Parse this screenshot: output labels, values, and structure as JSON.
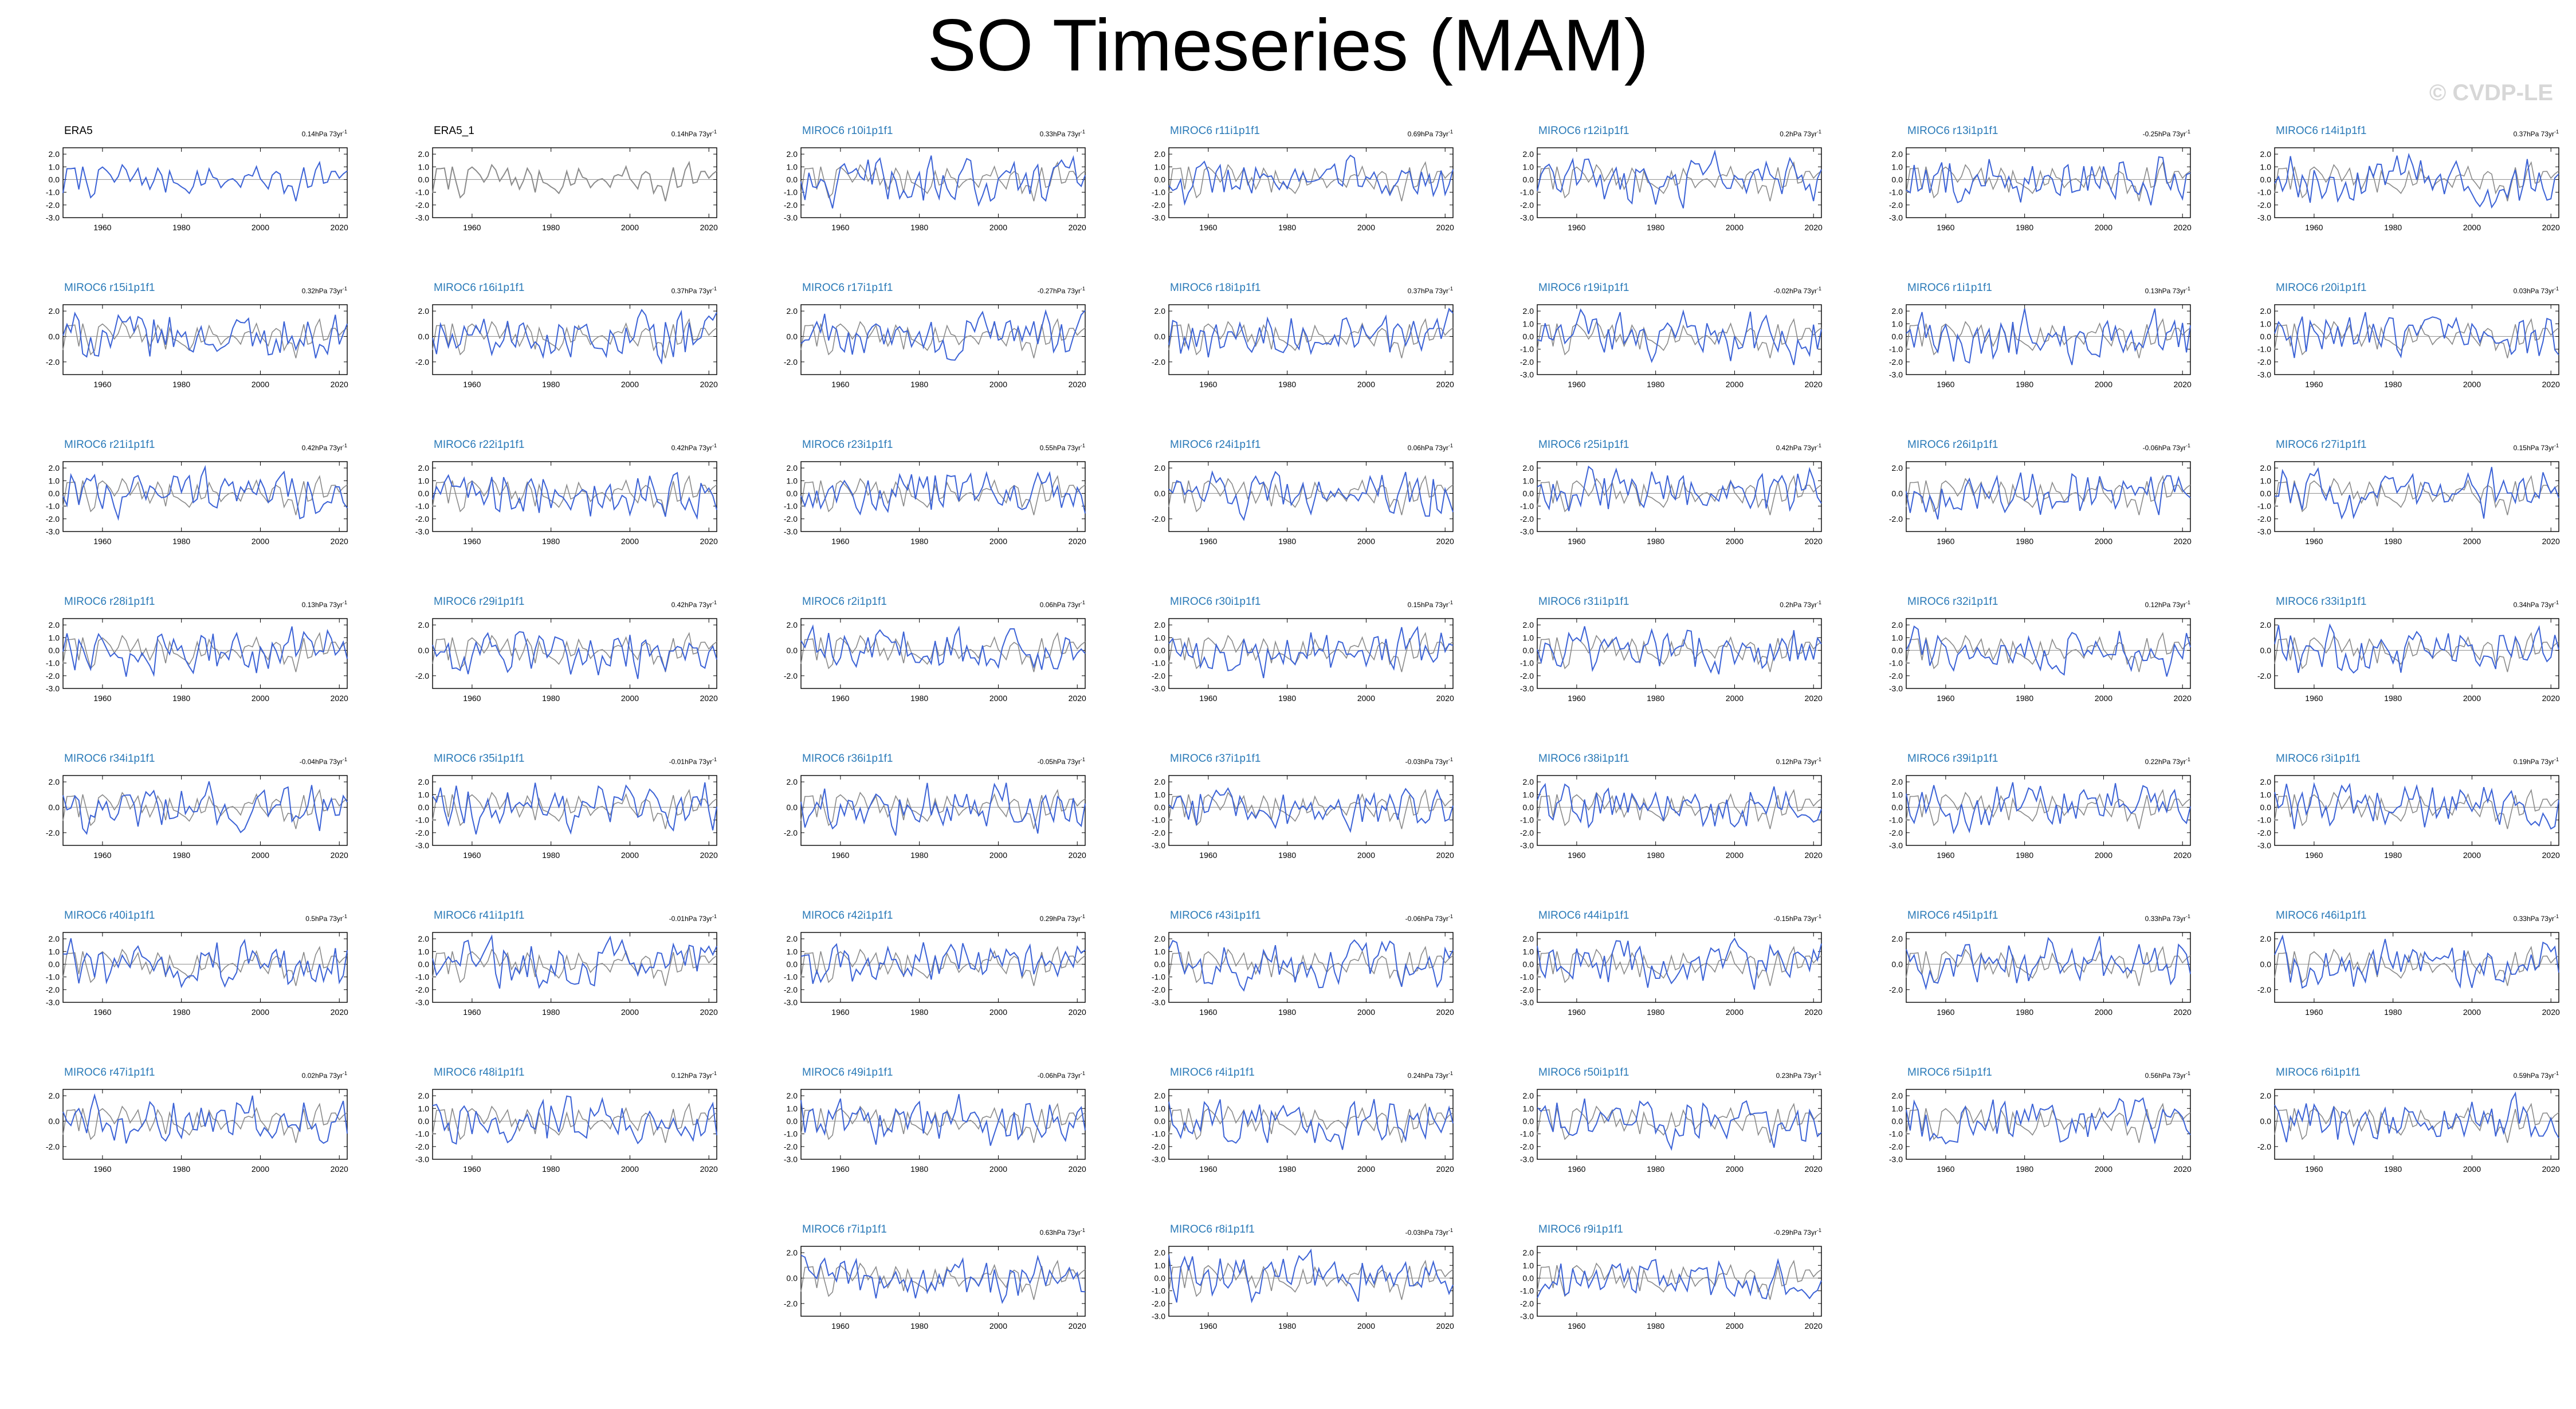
{
  "title": "SO Timeseries (MAM)",
  "credit": "© CVDP-LE",
  "colors": {
    "model": "#3b62d6",
    "obs": "#000000",
    "ref": "#8a8a8a",
    "model_title": "#2a7ab8",
    "obs_title": "#000000",
    "zero_line": "#9a9a9a"
  },
  "chart_data": {
    "type": "line",
    "x_range": [
      1950,
      2022
    ],
    "xticks": [
      1960,
      1980,
      2000,
      2020
    ],
    "xtick_labels": [
      "1960",
      "1980",
      "2000",
      "2020"
    ],
    "ylim": [
      -3.0,
      2.5
    ],
    "yticks_common": [
      "2.0",
      "0.0",
      "-2.0"
    ],
    "yticks_fine": [
      "2.0",
      "1.0",
      "0.0",
      "-1.0",
      "-2.0",
      "-3.0"
    ],
    "panels": [
      {
        "title": "ERA5",
        "trend": "0.14hPa 73yr",
        "obs": true,
        "fine": true
      },
      {
        "title": "ERA5_1",
        "trend": "0.14hPa 73yr",
        "obs": true,
        "fine": true
      },
      {
        "title": "MIROC6 r10i1p1f1",
        "trend": "0.33hPa 73yr",
        "fine": true
      },
      {
        "title": "MIROC6 r11i1p1f1",
        "trend": "0.69hPa 73yr",
        "fine": true
      },
      {
        "title": "MIROC6 r12i1p1f1",
        "trend": "0.2hPa 73yr",
        "fine": true
      },
      {
        "title": "MIROC6 r13i1p1f1",
        "trend": "-0.25hPa 73yr",
        "fine": true
      },
      {
        "title": "MIROC6 r14i1p1f1",
        "trend": "0.37hPa 73yr",
        "fine": true
      },
      {
        "title": "MIROC6 r15i1p1f1",
        "trend": "0.32hPa 73yr",
        "fine": false
      },
      {
        "title": "MIROC6 r16i1p1f1",
        "trend": "0.37hPa 73yr",
        "fine": false
      },
      {
        "title": "MIROC6 r17i1p1f1",
        "trend": "-0.27hPa 73yr",
        "fine": false
      },
      {
        "title": "MIROC6 r18i1p1f1",
        "trend": "0.37hPa 73yr",
        "fine": false
      },
      {
        "title": "MIROC6 r19i1p1f1",
        "trend": "-0.02hPa 73yr",
        "fine": true
      },
      {
        "title": "MIROC6 r1i1p1f1",
        "trend": "0.13hPa 73yr",
        "fine": true
      },
      {
        "title": "MIROC6 r20i1p1f1",
        "trend": "0.03hPa 73yr",
        "fine": true
      },
      {
        "title": "MIROC6 r21i1p1f1",
        "trend": "0.42hPa 73yr",
        "fine": true
      },
      {
        "title": "MIROC6 r22i1p1f1",
        "trend": "0.42hPa 73yr",
        "fine": true
      },
      {
        "title": "MIROC6 r23i1p1f1",
        "trend": "0.55hPa 73yr",
        "fine": true
      },
      {
        "title": "MIROC6 r24i1p1f1",
        "trend": "0.06hPa 73yr",
        "fine": false
      },
      {
        "title": "MIROC6 r25i1p1f1",
        "trend": "0.42hPa 73yr",
        "fine": true
      },
      {
        "title": "MIROC6 r26i1p1f1",
        "trend": "-0.06hPa 73yr",
        "fine": false
      },
      {
        "title": "MIROC6 r27i1p1f1",
        "trend": "0.15hPa 73yr",
        "fine": true
      },
      {
        "title": "MIROC6 r28i1p1f1",
        "trend": "0.13hPa 73yr",
        "fine": true
      },
      {
        "title": "MIROC6 r29i1p1f1",
        "trend": "0.42hPa 73yr",
        "fine": false
      },
      {
        "title": "MIROC6 r2i1p1f1",
        "trend": "0.06hPa 73yr",
        "fine": false
      },
      {
        "title": "MIROC6 r30i1p1f1",
        "trend": "0.15hPa 73yr",
        "fine": true
      },
      {
        "title": "MIROC6 r31i1p1f1",
        "trend": "0.2hPa 73yr",
        "fine": true
      },
      {
        "title": "MIROC6 r32i1p1f1",
        "trend": "0.12hPa 73yr",
        "fine": true
      },
      {
        "title": "MIROC6 r33i1p1f1",
        "trend": "0.34hPa 73yr",
        "fine": false
      },
      {
        "title": "MIROC6 r34i1p1f1",
        "trend": "-0.04hPa 73yr",
        "fine": false
      },
      {
        "title": "MIROC6 r35i1p1f1",
        "trend": "-0.01hPa 73yr",
        "fine": true
      },
      {
        "title": "MIROC6 r36i1p1f1",
        "trend": "-0.05hPa 73yr",
        "fine": false
      },
      {
        "title": "MIROC6 r37i1p1f1",
        "trend": "-0.03hPa 73yr",
        "fine": true
      },
      {
        "title": "MIROC6 r38i1p1f1",
        "trend": "0.12hPa 73yr",
        "fine": true
      },
      {
        "title": "MIROC6 r39i1p1f1",
        "trend": "0.22hPa 73yr",
        "fine": true
      },
      {
        "title": "MIROC6 r3i1p1f1",
        "trend": "0.19hPa 73yr",
        "fine": true
      },
      {
        "title": "MIROC6 r40i1p1f1",
        "trend": "0.5hPa 73yr",
        "fine": true
      },
      {
        "title": "MIROC6 r41i1p1f1",
        "trend": "-0.01hPa 73yr",
        "fine": true
      },
      {
        "title": "MIROC6 r42i1p1f1",
        "trend": "0.29hPa 73yr",
        "fine": true
      },
      {
        "title": "MIROC6 r43i1p1f1",
        "trend": "-0.06hPa 73yr",
        "fine": true
      },
      {
        "title": "MIROC6 r44i1p1f1",
        "trend": "-0.15hPa 73yr",
        "fine": true
      },
      {
        "title": "MIROC6 r45i1p1f1",
        "trend": "0.33hPa 73yr",
        "fine": false
      },
      {
        "title": "MIROC6 r46i1p1f1",
        "trend": "0.33hPa 73yr",
        "fine": false
      },
      {
        "title": "MIROC6 r47i1p1f1",
        "trend": "0.02hPa 73yr",
        "fine": false
      },
      {
        "title": "MIROC6 r48i1p1f1",
        "trend": "0.12hPa 73yr",
        "fine": true
      },
      {
        "title": "MIROC6 r49i1p1f1",
        "trend": "-0.06hPa 73yr",
        "fine": true
      },
      {
        "title": "MIROC6 r4i1p1f1",
        "trend": "0.24hPa 73yr",
        "fine": true
      },
      {
        "title": "MIROC6 r50i1p1f1",
        "trend": "0.23hPa 73yr",
        "fine": true
      },
      {
        "title": "MIROC6 r5i1p1f1",
        "trend": "0.56hPa 73yr",
        "fine": true
      },
      {
        "title": "MIROC6 r6i1p1f1",
        "trend": "0.59hPa 73yr",
        "fine": false
      },
      {
        "title": "MIROC6 r7i1p1f1",
        "trend": "0.63hPa 73yr",
        "fine": false
      },
      {
        "title": "MIROC6 r8i1p1f1",
        "trend": "-0.03hPa 73yr",
        "fine": true
      },
      {
        "title": "MIROC6 r9i1p1f1",
        "trend": "-0.29hPa 73yr",
        "fine": true
      }
    ]
  }
}
